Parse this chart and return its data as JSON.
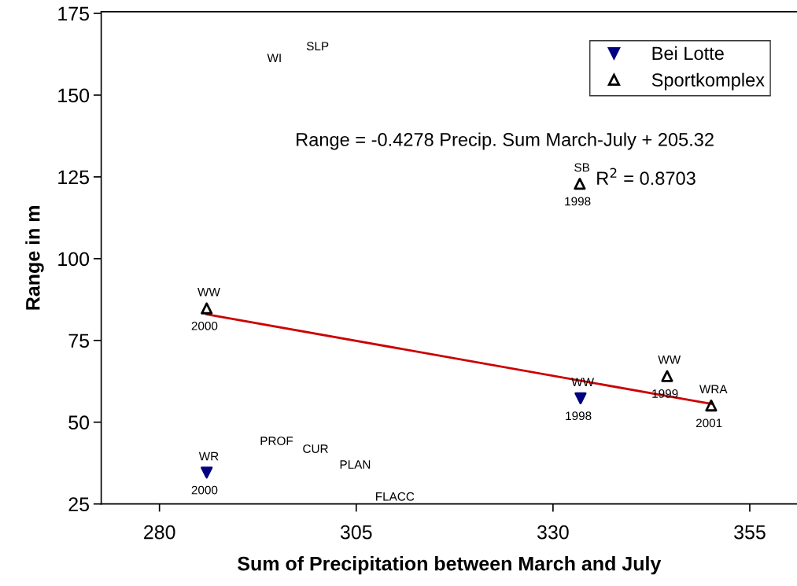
{
  "chart_data": {
    "type": "scatter",
    "xlabel": "Sum of Precipitation between March and July",
    "ylabel": "Range in m",
    "xlim": [
      272.6,
      361
    ],
    "ylim": [
      25,
      175.5
    ],
    "xticks": [
      280,
      305,
      330,
      355
    ],
    "yticks": [
      25,
      50,
      75,
      100,
      125,
      150,
      175
    ],
    "grid": false,
    "legend": "top right",
    "series": [
      {
        "name": "Bei Lotte",
        "color": "#000080",
        "marker": "triangle_down",
        "x": [
          286,
          333.5
        ],
        "values": [
          34.6,
          57.3
        ]
      },
      {
        "name": "Sportkomplex",
        "color": "#000000",
        "marker": "triangle",
        "x": [
          286,
          333.4,
          344.5,
          350.1
        ],
        "values": [
          84.8,
          122.9,
          64.1,
          55.1
        ]
      },
      {
        "type": "line",
        "color": "#cc0000",
        "marker": "none",
        "x": [
          286,
          350.1
        ],
        "values": [
          83.0,
          55.6
        ]
      }
    ],
    "annotations": [
      "WI",
      "SLP",
      "Range = -0.4278 Precip. Sum March-July + 205.32",
      "R$^{2}$ = 0.8703",
      "PROF",
      "CUR",
      "PLAN",
      "FLACC",
      {
        "text": "SB",
        "x": 333.4,
        "y": 122.9
      },
      {
        "text": "1998",
        "x": 333.4,
        "y": 122.9
      },
      {
        "text": "WW",
        "x": 286,
        "y": 84.8
      },
      {
        "text": "2000",
        "x": 286,
        "y": 84.8
      },
      {
        "text": "WW",
        "x": 333.5,
        "y": 57.3
      },
      {
        "text": "1998",
        "x": 333.5,
        "y": 57.3
      },
      {
        "text": "WW",
        "x": 344.5,
        "y": 64.1
      },
      {
        "text": "1999",
        "x": 344.5,
        "y": 64.1
      },
      {
        "text": "WRA",
        "x": 350.1,
        "y": 55.1
      },
      {
        "text": "2001",
        "x": 350.1,
        "y": 55.1
      },
      {
        "text": "WR",
        "x": 286,
        "y": 34.6
      },
      {
        "text": "2000",
        "x": 286,
        "y": 34.6
      }
    ]
  }
}
